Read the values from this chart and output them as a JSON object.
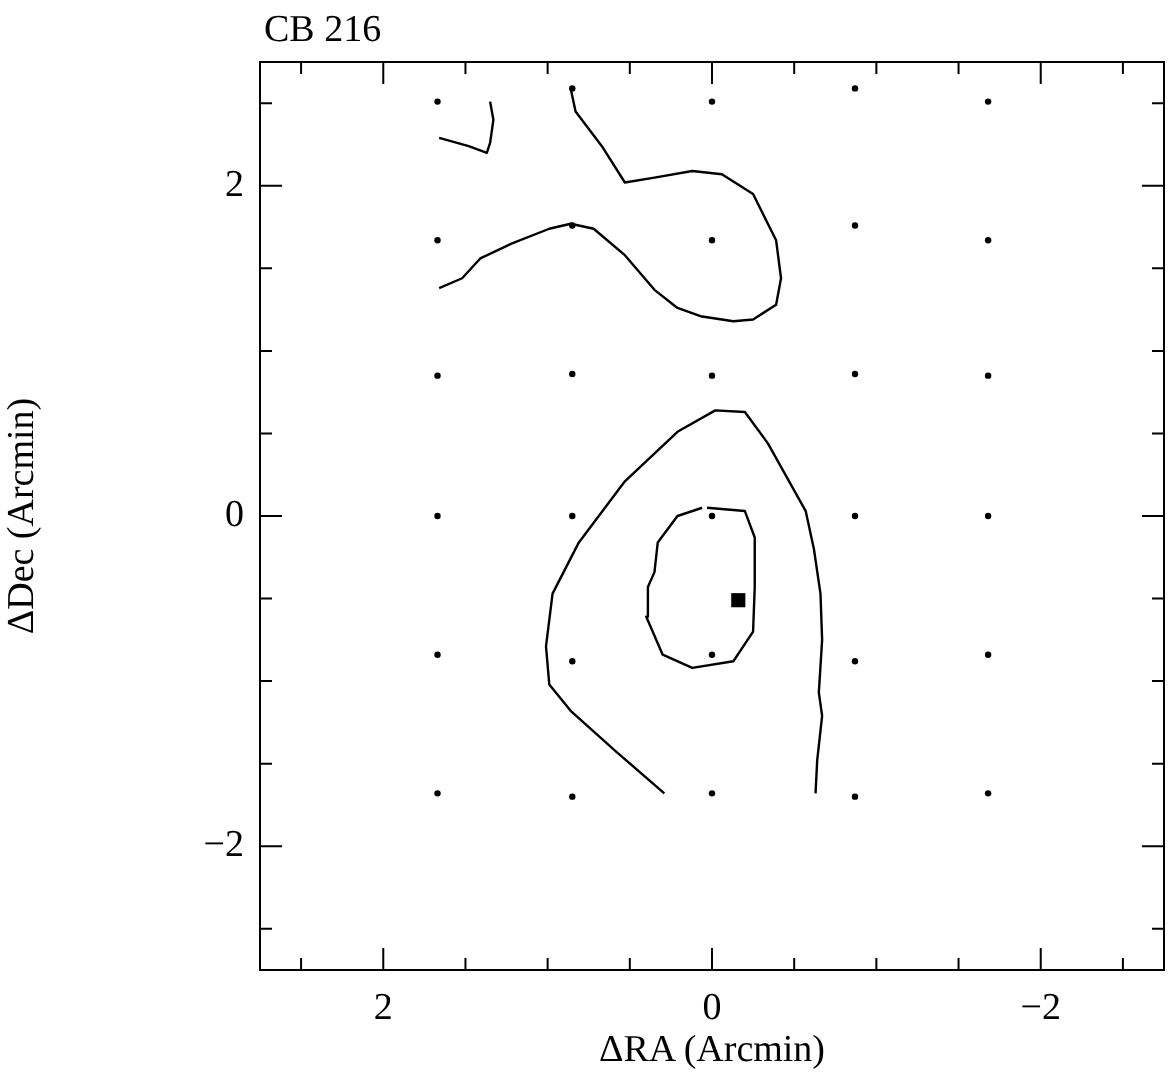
{
  "chart_data": {
    "type": "line",
    "title": "CB 216",
    "xlabel": "ΔRA (Arcmin)",
    "ylabel": "ΔDec (Arcmin)",
    "xlim": [
      2.75,
      -2.75
    ],
    "ylim": [
      -2.75,
      2.75
    ],
    "xticks": [
      {
        "value": 2.5,
        "label": null
      },
      2,
      {
        "value": 1.5,
        "label": null
      },
      {
        "value": 1,
        "label": null
      },
      {
        "value": 0.5,
        "label": null
      },
      0,
      {
        "value": -0.5,
        "label": null
      },
      {
        "value": -1,
        "label": null
      },
      {
        "value": -1.5,
        "label": null
      },
      {
        "value": -2,
        "label": "−2"
      },
      {
        "value": -2.5,
        "label": null
      }
    ],
    "yticks": [
      {
        "value": 2.5,
        "label": null
      },
      2,
      {
        "value": 1.5,
        "label": null
      },
      {
        "value": 1,
        "label": null
      },
      {
        "value": 0.5,
        "label": null
      },
      0,
      {
        "value": -0.5,
        "label": null
      },
      {
        "value": -1,
        "label": null
      },
      {
        "value": -1.5,
        "label": null
      },
      {
        "value": -2,
        "label": "−2"
      },
      {
        "value": -2.5,
        "label": null
      }
    ],
    "series": [
      {
        "type": "line",
        "color": "#000000",
        "marker": "none",
        "x": [
          1.66,
          1.48,
          1.37,
          1.35,
          1.33,
          1.35
        ],
        "values": [
          2.29,
          2.24,
          2.2,
          2.26,
          2.4,
          2.51
        ]
      },
      {
        "type": "line",
        "color": "#000000",
        "marker": "none",
        "x": [
          0.86,
          0.83,
          0.67,
          0.53,
          0.35,
          0.12,
          -0.06,
          -0.25,
          -0.39,
          -0.42,
          -0.39,
          -0.25,
          -0.13,
          0.07,
          0.21,
          0.35,
          0.53,
          0.72,
          0.86,
          0.99,
          1.22,
          1.41,
          1.52,
          1.66
        ],
        "values": [
          2.59,
          2.45,
          2.24,
          2.02,
          2.05,
          2.09,
          2.07,
          1.95,
          1.67,
          1.44,
          1.28,
          1.19,
          1.18,
          1.21,
          1.26,
          1.37,
          1.58,
          1.74,
          1.77,
          1.74,
          1.65,
          1.56,
          1.44,
          1.38
        ]
      },
      {
        "type": "line",
        "color": "#000000",
        "marker": "none",
        "x": [
          0.29,
          0.58,
          0.86,
          0.99,
          1.01,
          0.97,
          0.81,
          0.53,
          0.21,
          -0.02,
          -0.2,
          -0.34,
          -0.57,
          -0.62,
          -0.66,
          -0.67,
          -0.65,
          -0.67,
          -0.64,
          -0.63
        ],
        "values": [
          -1.68,
          -1.43,
          -1.18,
          -1.02,
          -0.79,
          -0.47,
          -0.16,
          0.21,
          0.51,
          0.64,
          0.63,
          0.44,
          0.03,
          -0.2,
          -0.47,
          -0.75,
          -1.07,
          -1.21,
          -1.48,
          -1.68
        ]
      },
      {
        "type": "line",
        "color": "#000000",
        "marker": "none",
        "x": [
          0.03,
          -0.2,
          -0.26,
          -0.26,
          -0.25,
          -0.13,
          0.12,
          0.3,
          0.4,
          0.39,
          0.35,
          0.33,
          0.21,
          0.06
        ],
        "values": [
          0.05,
          0.03,
          -0.13,
          -0.43,
          -0.7,
          -0.88,
          -0.92,
          -0.84,
          -0.61,
          -0.43,
          -0.34,
          -0.16,
          0.0,
          0.05
        ]
      },
      {
        "type": "scatter",
        "color": "#000000",
        "marker": "circle",
        "x": [
          1.67,
          1.67,
          1.67,
          1.67,
          1.67,
          1.67,
          0.85,
          0.85,
          0.85,
          0.85,
          0.85,
          0.85,
          0,
          0,
          0,
          0,
          0,
          0,
          -0.87,
          -0.87,
          -0.87,
          -0.87,
          -0.87,
          -0.87,
          -1.68,
          -1.68,
          -1.68,
          -1.68,
          -1.68,
          -1.68
        ],
        "values": [
          2.51,
          1.67,
          0.85,
          0,
          -0.84,
          -1.68,
          2.59,
          1.76,
          0.86,
          0,
          -0.88,
          -1.7,
          2.51,
          1.67,
          0.85,
          0,
          -0.84,
          -1.68,
          2.59,
          1.76,
          0.86,
          0,
          -0.88,
          -1.7,
          2.51,
          1.67,
          0.85,
          0,
          -0.84,
          -1.68
        ]
      },
      {
        "type": "scatter",
        "color": "#000000",
        "marker": "square",
        "x": [
          -0.16
        ],
        "values": [
          -0.51
        ]
      }
    ]
  }
}
